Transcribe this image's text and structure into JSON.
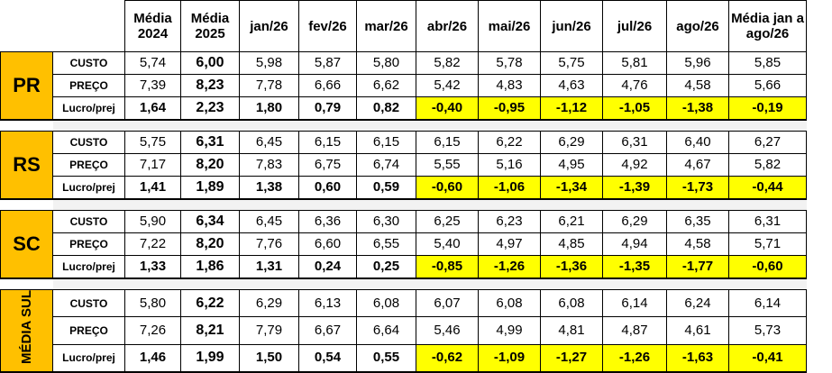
{
  "header": [
    "Média 2024",
    "Média 2025",
    "jan/26",
    "fev/26",
    "mar/26",
    "abr/26",
    "mai/26",
    "jun/26",
    "jul/26",
    "ago/26",
    "Média jan a ago/26"
  ],
  "groups": [
    {
      "state": "PR",
      "rows": [
        {
          "label": "CUSTO",
          "values": [
            "5,74",
            "6,00",
            "5,98",
            "5,87",
            "5,80",
            "5,82",
            "5,78",
            "5,75",
            "5,81",
            "5,96",
            "5,85"
          ]
        },
        {
          "label": "PREÇO",
          "values": [
            "7,39",
            "8,23",
            "7,78",
            "6,66",
            "6,62",
            "5,42",
            "4,83",
            "4,63",
            "4,76",
            "4,58",
            "5,66"
          ]
        },
        {
          "label": "Lucro/prej",
          "values": [
            "1,64",
            "2,23",
            "1,80",
            "0,79",
            "0,82",
            "-0,40",
            "-0,95",
            "-1,12",
            "-1,05",
            "-1,38",
            "-0,19"
          ]
        }
      ]
    },
    {
      "state": "RS",
      "rows": [
        {
          "label": "CUSTO",
          "values": [
            "5,75",
            "6,31",
            "6,45",
            "6,15",
            "6,15",
            "6,15",
            "6,22",
            "6,29",
            "6,31",
            "6,40",
            "6,27"
          ]
        },
        {
          "label": "PREÇO",
          "values": [
            "7,17",
            "8,20",
            "7,83",
            "6,75",
            "6,74",
            "5,55",
            "5,16",
            "4,95",
            "4,92",
            "4,67",
            "5,82"
          ]
        },
        {
          "label": "Lucro/prej",
          "values": [
            "1,41",
            "1,89",
            "1,38",
            "0,60",
            "0,59",
            "-0,60",
            "-1,06",
            "-1,34",
            "-1,39",
            "-1,73",
            "-0,44"
          ]
        }
      ]
    },
    {
      "state": "SC",
      "rows": [
        {
          "label": "CUSTO",
          "values": [
            "5,90",
            "6,34",
            "6,45",
            "6,36",
            "6,30",
            "6,25",
            "6,23",
            "6,21",
            "6,29",
            "6,35",
            "6,31"
          ]
        },
        {
          "label": "PREÇO",
          "values": [
            "7,22",
            "8,20",
            "7,76",
            "6,60",
            "6,55",
            "5,40",
            "4,97",
            "4,85",
            "4,94",
            "4,58",
            "5,71"
          ]
        },
        {
          "label": "Lucro/prej",
          "values": [
            "1,33",
            "1,86",
            "1,31",
            "0,24",
            "0,25",
            "-0,85",
            "-1,26",
            "-1,36",
            "-1,35",
            "-1,77",
            "-0,60"
          ]
        }
      ]
    },
    {
      "state": "MÉDIA SUL",
      "rows": [
        {
          "label": "CUSTO",
          "values": [
            "5,80",
            "6,22",
            "6,29",
            "6,13",
            "6,08",
            "6,07",
            "6,08",
            "6,08",
            "6,14",
            "6,24",
            "6,14"
          ]
        },
        {
          "label": "PREÇO",
          "values": [
            "7,26",
            "8,21",
            "7,79",
            "6,67",
            "6,64",
            "5,46",
            "4,99",
            "4,81",
            "4,87",
            "4,61",
            "5,73"
          ]
        },
        {
          "label": "Lucro/prej",
          "values": [
            "1,46",
            "1,99",
            "1,50",
            "0,54",
            "0,55",
            "-0,62",
            "-1,09",
            "-1,27",
            "-1,26",
            "-1,63",
            "-0,41"
          ]
        }
      ]
    }
  ],
  "colors": {
    "state_bg": "#ffc000",
    "negative_highlight": "#ffff00",
    "separator": "#f2f2f2"
  }
}
